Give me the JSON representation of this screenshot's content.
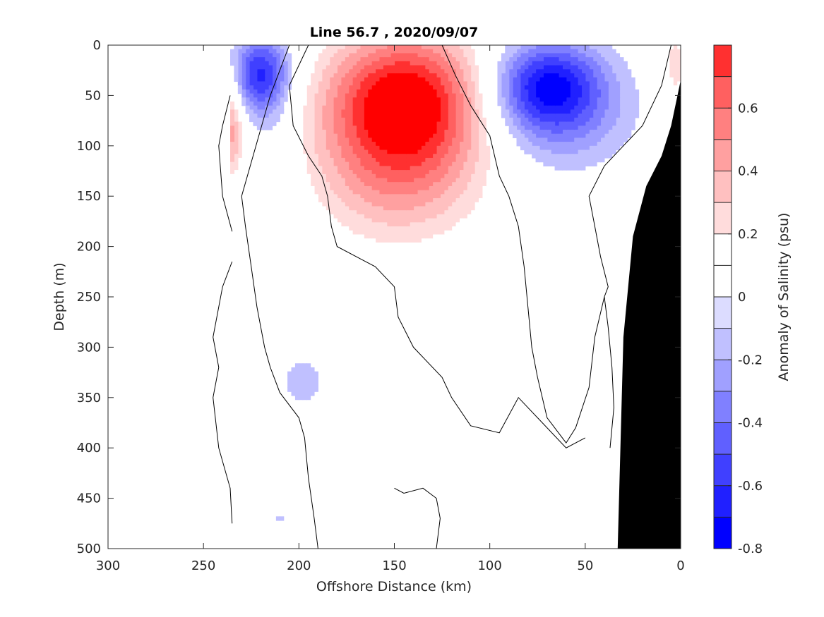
{
  "chart_data": {
    "type": "heatmap",
    "title": "Line 56.7 , 2020/09/07",
    "xlabel": "Offshore Distance (km)",
    "ylabel": "Depth (m)",
    "xlim": [
      300,
      0
    ],
    "ylim": [
      0,
      500
    ],
    "x_ticks": [
      "300",
      "250",
      "200",
      "150",
      "100",
      "50",
      "0"
    ],
    "y_ticks": [
      "0",
      "50",
      "100",
      "150",
      "200",
      "250",
      "300",
      "350",
      "400",
      "450",
      "500"
    ],
    "colorbar": {
      "label": "Anomaly of Salinity (psu)",
      "range": [
        -0.8,
        0.8
      ],
      "tick_labels": [
        "-0.8",
        "-0.6",
        "-0.4",
        "-0.2",
        "0",
        "0.2",
        "0.4",
        "0.6"
      ],
      "levels": [
        -0.8,
        -0.7,
        -0.6,
        -0.5,
        -0.4,
        -0.3,
        -0.2,
        -0.1,
        0,
        0.1,
        0.2,
        0.3,
        0.4,
        0.5,
        0.6,
        0.7,
        0.8
      ],
      "colors": [
        "#0000ff",
        "#2020ff",
        "#4040ff",
        "#6060ff",
        "#8080ff",
        "#a0a0ff",
        "#c0c0ff",
        "#dcdcff",
        "#ffffff",
        "#ffffff",
        "#ffdcdc",
        "#ffc0c0",
        "#ffa0a0",
        "#ff8080",
        "#ff6060",
        "#ff3030",
        "#ff0000"
      ]
    },
    "anomaly_features": [
      {
        "name": "surface salty core",
        "x_km": 145,
        "depth_m": 50,
        "anomaly": 0.8,
        "sx": 30,
        "sy": 48
      },
      {
        "name": "salty tongue",
        "x_km": 148,
        "depth_m": 125,
        "anomaly": 0.45,
        "sx": 33,
        "sy": 55
      },
      {
        "name": "offshore fresh core",
        "x_km": 220,
        "depth_m": 30,
        "anomaly": -0.65,
        "sx": 11,
        "sy": 28
      },
      {
        "name": "offshore fresh tongue",
        "x_km": 212,
        "depth_m": 120,
        "anomaly": -0.15,
        "sx": 8,
        "sy": 40
      },
      {
        "name": "edge salty patch",
        "x_km": 236,
        "depth_m": 80,
        "anomaly": 0.45,
        "sx": 5,
        "sy": 38
      },
      {
        "name": "nearshore fresh core",
        "x_km": 70,
        "depth_m": 38,
        "anomaly": -0.6,
        "sx": 20,
        "sy": 30
      },
      {
        "name": "nearshore fresh body",
        "x_km": 65,
        "depth_m": 70,
        "anomaly": -0.3,
        "sx": 26,
        "sy": 38
      },
      {
        "name": "coastal salty patch",
        "x_km": 3,
        "depth_m": 20,
        "anomaly": 0.3,
        "sx": 4,
        "sy": 22
      },
      {
        "name": "mid-depth fresh patch",
        "x_km": 198,
        "depth_m": 335,
        "anomaly": -0.2,
        "sx": 7,
        "sy": 16
      },
      {
        "name": "deep fresh speck",
        "x_km": 210,
        "depth_m": 470,
        "anomaly": -0.15,
        "sx": 3,
        "sy": 4
      }
    ],
    "data_coverage_km": [
      0,
      235
    ],
    "bathymetry": [
      [
        0,
        35
      ],
      [
        5,
        80
      ],
      [
        10,
        110
      ],
      [
        18,
        140
      ],
      [
        25,
        190
      ],
      [
        30,
        290
      ],
      [
        33,
        500
      ]
    ],
    "zero_contours": [
      [
        [
          235,
          185
        ],
        [
          240,
          150
        ],
        [
          242,
          100
        ],
        [
          240,
          80
        ],
        [
          236,
          50
        ]
      ],
      [
        [
          235,
          215
        ],
        [
          240,
          240
        ],
        [
          245,
          290
        ],
        [
          242,
          320
        ],
        [
          245,
          350
        ],
        [
          242,
          400
        ],
        [
          236,
          440
        ],
        [
          235,
          475
        ]
      ],
      [
        [
          190,
          500
        ],
        [
          192,
          470
        ],
        [
          195,
          430
        ],
        [
          197,
          390
        ],
        [
          200,
          370
        ],
        [
          210,
          345
        ],
        [
          215,
          320
        ],
        [
          218,
          300
        ],
        [
          222,
          260
        ],
        [
          225,
          220
        ],
        [
          228,
          180
        ],
        [
          230,
          150
        ],
        [
          215,
          50
        ],
        [
          205,
          0
        ]
      ],
      [
        [
          195,
          0
        ],
        [
          205,
          40
        ],
        [
          203,
          80
        ],
        [
          195,
          110
        ],
        [
          188,
          130
        ],
        [
          185,
          150
        ],
        [
          183,
          180
        ],
        [
          180,
          200
        ],
        [
          160,
          220
        ],
        [
          150,
          240
        ],
        [
          148,
          270
        ],
        [
          140,
          300
        ],
        [
          125,
          330
        ],
        [
          120,
          350
        ],
        [
          110,
          378
        ],
        [
          95,
          385
        ],
        [
          85,
          350
        ],
        [
          60,
          400
        ],
        [
          50,
          390
        ]
      ],
      [
        [
          150,
          440
        ],
        [
          145,
          445
        ],
        [
          135,
          440
        ],
        [
          128,
          450
        ],
        [
          126,
          470
        ],
        [
          128,
          500
        ]
      ],
      [
        [
          125,
          0
        ],
        [
          118,
          30
        ],
        [
          110,
          60
        ],
        [
          100,
          90
        ],
        [
          95,
          130
        ],
        [
          90,
          150
        ],
        [
          85,
          180
        ],
        [
          82,
          220
        ],
        [
          80,
          260
        ],
        [
          78,
          300
        ],
        [
          75,
          330
        ],
        [
          70,
          370
        ],
        [
          60,
          395
        ],
        [
          55,
          380
        ],
        [
          48,
          340
        ],
        [
          45,
          290
        ],
        [
          40,
          250
        ],
        [
          38,
          240
        ],
        [
          42,
          210
        ],
        [
          45,
          180
        ],
        [
          48,
          150
        ],
        [
          40,
          120
        ],
        [
          30,
          100
        ],
        [
          20,
          80
        ],
        [
          10,
          40
        ],
        [
          5,
          0
        ]
      ],
      [
        [
          40,
          250
        ],
        [
          38,
          280
        ],
        [
          36,
          320
        ],
        [
          35,
          360
        ],
        [
          37,
          400
        ]
      ]
    ]
  }
}
